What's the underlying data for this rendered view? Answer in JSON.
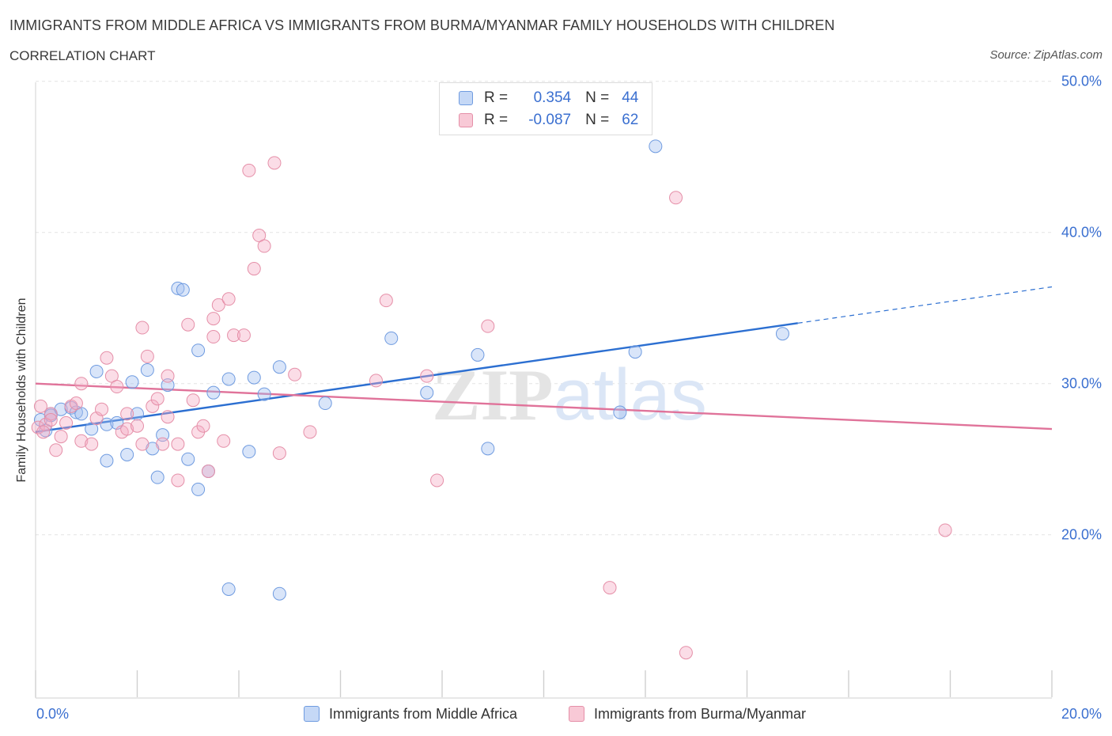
{
  "title": "IMMIGRANTS FROM MIDDLE AFRICA VS IMMIGRANTS FROM BURMA/MYANMAR FAMILY HOUSEHOLDS WITH CHILDREN",
  "subtitle": "CORRELATION CHART",
  "source": "Source: ZipAtlas.com",
  "watermark": "ZIPatlas",
  "legend": {
    "r_label": "R =",
    "n_label": "N =",
    "rows": [
      {
        "r": "0.354",
        "n": "44",
        "fill": "#c5d8f6",
        "stroke": "#6f9be0"
      },
      {
        "r": "-0.087",
        "n": "62",
        "fill": "#f8c9d6",
        "stroke": "#e58fa8"
      }
    ]
  },
  "colors": {
    "blue_fill": "rgba(160,190,240,0.40)",
    "blue_stroke": "#6f9be0",
    "blue_line": "#2c6fd1",
    "pink_fill": "rgba(245,170,195,0.40)",
    "pink_stroke": "#e58fa8",
    "pink_line": "#e0739a",
    "tick_text": "#3a6fd0",
    "grid": "#e3e3e3"
  },
  "chart_data": {
    "type": "scatter",
    "xlabel": "",
    "ylabel": "Family Households with Children",
    "xlim": [
      0,
      20
    ],
    "ylim": [
      10,
      50
    ],
    "x_tick_labels": [
      {
        "value": 0,
        "label": "0.0%"
      },
      {
        "value": 20,
        "label": "20.0%"
      }
    ],
    "y_tick_labels": [
      {
        "value": 20,
        "label": "20.0%"
      },
      {
        "value": 30,
        "label": "30.0%"
      },
      {
        "value": 40,
        "label": "40.0%"
      },
      {
        "value": 50,
        "label": "50.0%"
      }
    ],
    "grid": true,
    "legend_position": "top-center",
    "series": [
      {
        "name": "Immigrants from Middle Africa",
        "color": "blue",
        "trend": {
          "x_start": 0,
          "y_start": 26.8,
          "x_solid_end": 15.0,
          "y_solid_end": 34.0,
          "x_end": 20,
          "y_end": 36.4
        },
        "points": [
          [
            0.1,
            27.6
          ],
          [
            0.3,
            28.0
          ],
          [
            0.3,
            27.9
          ],
          [
            0.5,
            28.3
          ],
          [
            0.7,
            28.4
          ],
          [
            0.8,
            28.1
          ],
          [
            0.9,
            28.0
          ],
          [
            1.1,
            27.0
          ],
          [
            1.2,
            30.8
          ],
          [
            1.4,
            27.3
          ],
          [
            1.6,
            27.4
          ],
          [
            1.4,
            24.9
          ],
          [
            1.8,
            25.3
          ],
          [
            1.9,
            30.1
          ],
          [
            2.0,
            28.0
          ],
          [
            2.2,
            30.9
          ],
          [
            2.3,
            25.7
          ],
          [
            2.4,
            23.8
          ],
          [
            2.5,
            26.6
          ],
          [
            2.6,
            29.9
          ],
          [
            2.8,
            36.3
          ],
          [
            2.9,
            36.2
          ],
          [
            3.0,
            25.0
          ],
          [
            3.2,
            32.2
          ],
          [
            3.2,
            23.0
          ],
          [
            3.4,
            24.2
          ],
          [
            3.5,
            29.4
          ],
          [
            3.8,
            30.3
          ],
          [
            3.8,
            16.4
          ],
          [
            4.2,
            25.5
          ],
          [
            4.3,
            30.4
          ],
          [
            4.5,
            29.3
          ],
          [
            4.8,
            16.1
          ],
          [
            4.8,
            31.1
          ],
          [
            5.7,
            28.7
          ],
          [
            7.0,
            33.0
          ],
          [
            7.7,
            29.4
          ],
          [
            8.7,
            31.9
          ],
          [
            8.9,
            25.7
          ],
          [
            11.5,
            28.1
          ],
          [
            11.8,
            32.1
          ],
          [
            12.2,
            45.7
          ],
          [
            14.7,
            33.3
          ],
          [
            0.2,
            26.9
          ]
        ]
      },
      {
        "name": "Immigrants from Burma/Myanmar",
        "color": "pink",
        "trend": {
          "x_start": 0,
          "y_start": 30.0,
          "x_end": 20,
          "y_end": 27.0
        },
        "points": [
          [
            0.05,
            27.1
          ],
          [
            0.1,
            28.5
          ],
          [
            0.2,
            27.3
          ],
          [
            0.3,
            28.0
          ],
          [
            0.4,
            25.6
          ],
          [
            0.5,
            26.5
          ],
          [
            0.6,
            27.4
          ],
          [
            0.7,
            28.5
          ],
          [
            0.8,
            28.7
          ],
          [
            0.9,
            30.0
          ],
          [
            0.9,
            26.2
          ],
          [
            1.1,
            26.0
          ],
          [
            1.2,
            27.7
          ],
          [
            1.3,
            28.3
          ],
          [
            1.4,
            31.7
          ],
          [
            1.5,
            30.5
          ],
          [
            1.6,
            29.8
          ],
          [
            1.7,
            26.8
          ],
          [
            1.8,
            28.0
          ],
          [
            1.8,
            27.0
          ],
          [
            2.0,
            27.2
          ],
          [
            2.1,
            26.0
          ],
          [
            2.1,
            33.7
          ],
          [
            2.2,
            31.8
          ],
          [
            2.3,
            28.5
          ],
          [
            2.4,
            29.0
          ],
          [
            2.5,
            26.0
          ],
          [
            2.6,
            27.8
          ],
          [
            2.6,
            30.5
          ],
          [
            2.8,
            26.0
          ],
          [
            2.8,
            23.6
          ],
          [
            3.0,
            33.9
          ],
          [
            3.1,
            28.9
          ],
          [
            3.2,
            26.8
          ],
          [
            3.3,
            27.2
          ],
          [
            3.4,
            24.2
          ],
          [
            3.5,
            33.1
          ],
          [
            3.5,
            34.3
          ],
          [
            3.6,
            35.2
          ],
          [
            3.7,
            26.2
          ],
          [
            3.8,
            35.6
          ],
          [
            3.9,
            33.2
          ],
          [
            4.1,
            33.2
          ],
          [
            4.2,
            44.1
          ],
          [
            4.3,
            37.6
          ],
          [
            4.4,
            39.8
          ],
          [
            4.5,
            39.1
          ],
          [
            4.7,
            44.6
          ],
          [
            4.8,
            25.4
          ],
          [
            5.1,
            30.6
          ],
          [
            5.4,
            26.8
          ],
          [
            6.7,
            30.2
          ],
          [
            6.9,
            35.5
          ],
          [
            7.7,
            30.5
          ],
          [
            7.9,
            23.6
          ],
          [
            8.9,
            33.8
          ],
          [
            11.3,
            16.5
          ],
          [
            12.6,
            42.3
          ],
          [
            12.8,
            12.2
          ],
          [
            17.9,
            20.3
          ],
          [
            0.3,
            27.6
          ],
          [
            0.15,
            26.8
          ]
        ]
      }
    ]
  }
}
